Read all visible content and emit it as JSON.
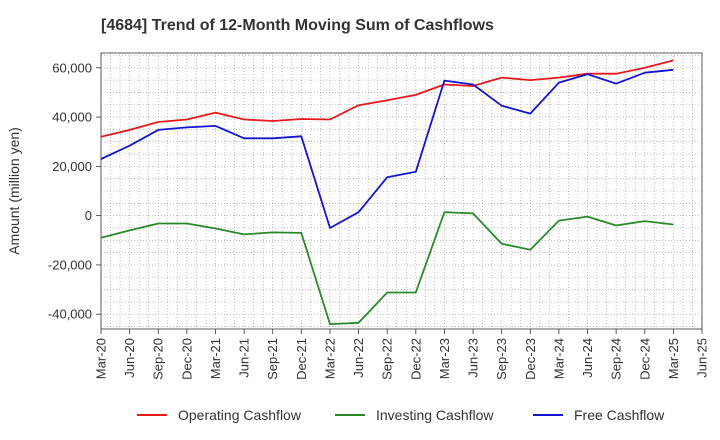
{
  "chart_data": {
    "type": "line",
    "title": "[4684]  Trend of 12-Month Moving Sum of Cashflows",
    "ylabel": "Amount (million yen)",
    "xlabel": "",
    "ylim": [
      -46000,
      66000
    ],
    "yticks": [
      -40000,
      -20000,
      0,
      20000,
      40000,
      60000
    ],
    "ytick_labels": [
      "-40,000",
      "-20,000",
      "0",
      "20,000",
      "40,000",
      "60,000"
    ],
    "x_tick_labels": [
      "Mar-20",
      "Jun-20",
      "Sep-20",
      "Dec-20",
      "Mar-21",
      "Jun-21",
      "Sep-21",
      "Dec-21",
      "Mar-22",
      "Jun-22",
      "Sep-22",
      "Dec-22",
      "Mar-23",
      "Jun-23",
      "Sep-23",
      "Dec-23",
      "Mar-24",
      "Jun-24",
      "Sep-24",
      "Dec-24",
      "Mar-25",
      "Jun-25"
    ],
    "categories": [
      "Mar-20",
      "Jun-20",
      "Sep-20",
      "Dec-20",
      "Mar-21",
      "Jun-21",
      "Sep-21",
      "Dec-21",
      "Mar-22",
      "Jun-22",
      "Sep-22",
      "Dec-22",
      "Mar-23",
      "Jun-23",
      "Sep-23",
      "Dec-23",
      "Mar-24",
      "Jun-24",
      "Sep-24",
      "Dec-24",
      "Mar-25"
    ],
    "grid": true,
    "legend_position": "bottom",
    "series": [
      {
        "name": "Operating Cashflow",
        "color": "#e8191b",
        "values": [
          32000,
          34800,
          38000,
          39000,
          41800,
          39000,
          38400,
          39200,
          39000,
          44800,
          46800,
          49000,
          53200,
          52600,
          56000,
          55000,
          56000,
          57600,
          57600,
          60000,
          63000
        ]
      },
      {
        "name": "Investing Cashflow",
        "color": "#2a8a2a",
        "values": [
          -9000,
          -6000,
          -3200,
          -3200,
          -5200,
          -7600,
          -6800,
          -7000,
          -44000,
          -43500,
          -31200,
          -31200,
          1400,
          900,
          -11400,
          -13800,
          -2000,
          -400,
          -4000,
          -2200,
          -3600
        ]
      },
      {
        "name": "Free Cashflow",
        "color": "#1414d2",
        "values": [
          23000,
          28400,
          34800,
          35800,
          36400,
          31400,
          31400,
          32200,
          -5000,
          1400,
          15600,
          17800,
          54800,
          53200,
          44600,
          41400,
          54000,
          57400,
          53600,
          58000,
          59200
        ]
      }
    ]
  }
}
